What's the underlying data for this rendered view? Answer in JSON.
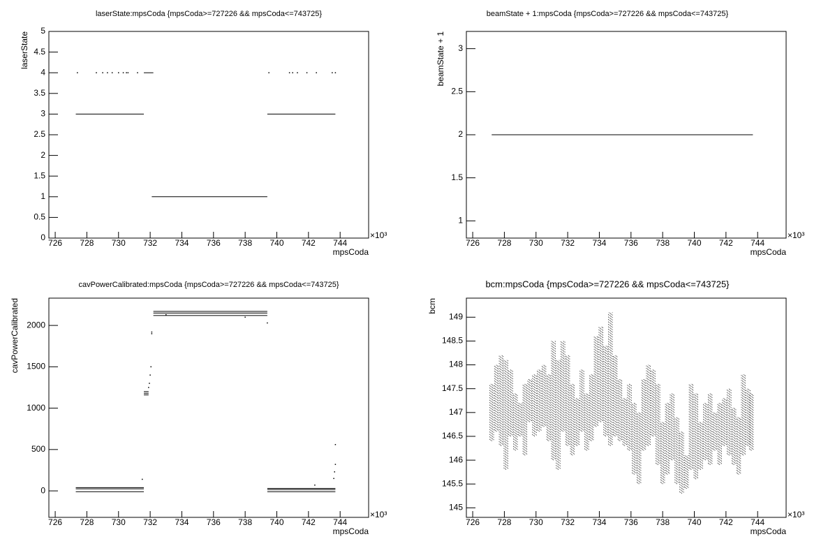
{
  "chart_data": [
    {
      "type": "scatter",
      "title": "laserState:mpsCoda {mpsCoda>=727226 && mpsCoda<=743725}",
      "x_label": "mpsCoda",
      "y_label": "laserState",
      "x_multiplier": "×10³",
      "color": "#000000",
      "xlim": [
        725.6,
        745.8
      ],
      "xticks": [
        726,
        728,
        730,
        732,
        734,
        736,
        738,
        740,
        742,
        744
      ],
      "ylim": [
        0,
        5
      ],
      "yticks": [
        0,
        0.5,
        1,
        1.5,
        2,
        2.5,
        3,
        3.5,
        4,
        4.5,
        5
      ],
      "segments": {
        "y": [
          3,
          1,
          3,
          4
        ],
        "x0": [
          727.3,
          732.1,
          739.4,
          731.6
        ],
        "x1": [
          731.6,
          739.4,
          743.7,
          732.2
        ]
      },
      "points": {
        "x": [
          727.4,
          728.6,
          729.0,
          729.3,
          729.6,
          730.0,
          730.3,
          730.5,
          730.6,
          731.2,
          739.5,
          740.8,
          741.0,
          741.3,
          741.9,
          742.5,
          743.5,
          743.7
        ],
        "y": [
          4,
          4,
          4,
          4,
          4,
          4,
          4,
          4,
          4,
          4,
          4,
          4,
          4,
          4,
          4,
          4,
          4,
          4
        ]
      }
    },
    {
      "type": "scatter",
      "title": "beamState + 1:mpsCoda {mpsCoda>=727226 && mpsCoda<=743725}",
      "x_label": "mpsCoda",
      "y_label": "beamState + 1",
      "x_multiplier": "×10³",
      "color": "#000000",
      "xlim": [
        725.6,
        745.8
      ],
      "xticks": [
        726,
        728,
        730,
        732,
        734,
        736,
        738,
        740,
        742,
        744
      ],
      "ylim": [
        0.8,
        3.2
      ],
      "yticks": [
        1,
        1.5,
        2,
        2.5,
        3
      ],
      "segments": {
        "y": [
          2
        ],
        "x0": [
          727.2
        ],
        "x1": [
          743.7
        ]
      }
    },
    {
      "type": "scatter",
      "title": "cavPowerCalibrated:mpsCoda {mpsCoda>=727226 && mpsCoda<=743725}",
      "x_label": "mpsCoda",
      "y_label": "cavPowerCalibrated",
      "x_multiplier": "×10³",
      "color": "#000000",
      "xlim": [
        725.6,
        745.8
      ],
      "xticks": [
        726,
        728,
        730,
        732,
        734,
        736,
        738,
        740,
        742,
        744
      ],
      "ylim": [
        -320,
        2330
      ],
      "yticks": [
        0,
        500,
        1000,
        1500,
        2000
      ],
      "segments": {
        "y": [
          40,
          25,
          -10,
          1200,
          1180,
          1160,
          2170,
          2150,
          2120,
          30,
          15,
          -10
        ],
        "x0": [
          727.3,
          727.3,
          727.3,
          731.6,
          731.6,
          731.6,
          732.2,
          732.2,
          732.2,
          739.4,
          739.4,
          739.4
        ],
        "x1": [
          731.6,
          731.6,
          731.6,
          731.9,
          731.9,
          731.9,
          739.4,
          739.4,
          739.4,
          743.7,
          743.7,
          743.7
        ]
      },
      "points": {
        "x": [
          731.5,
          731.9,
          731.95,
          732.0,
          732.05,
          732.1,
          732.1,
          733.0,
          738.0,
          739.4,
          742.4,
          743.6,
          743.65,
          743.7,
          743.7
        ],
        "y": [
          140,
          1250,
          1300,
          1400,
          1500,
          1900,
          1920,
          2130,
          2100,
          2030,
          70,
          150,
          230,
          320,
          560
        ]
      }
    },
    {
      "type": "scatter",
      "title": "bcm:mpsCoda {mpsCoda>=727226 && mpsCoda<=743725}",
      "x_label": "mpsCoda",
      "y_label": "bcm",
      "x_multiplier": "×10³",
      "color": "#000000",
      "xlim": [
        725.6,
        745.8
      ],
      "xticks": [
        726,
        728,
        730,
        732,
        734,
        736,
        738,
        740,
        742,
        744
      ],
      "ylim": [
        144.8,
        149.4
      ],
      "yticks": [
        145,
        145.5,
        146,
        146.5,
        147,
        147.5,
        148,
        148.5,
        149
      ],
      "ranges": {
        "x": [
          727.2,
          727.5,
          727.8,
          728.1,
          728.4,
          728.7,
          729.0,
          729.3,
          729.6,
          729.9,
          730.2,
          730.5,
          730.8,
          731.1,
          731.4,
          731.7,
          732.0,
          732.3,
          732.6,
          732.9,
          733.2,
          733.5,
          733.8,
          734.1,
          734.4,
          734.7,
          735.0,
          735.3,
          735.6,
          735.9,
          736.2,
          736.5,
          736.8,
          737.1,
          737.4,
          737.7,
          738.0,
          738.3,
          738.6,
          738.9,
          739.2,
          739.5,
          739.8,
          740.1,
          740.4,
          740.7,
          741.0,
          741.3,
          741.6,
          741.9,
          742.2,
          742.5,
          742.8,
          743.1,
          743.4,
          743.6
        ],
        "low": [
          146.4,
          146.6,
          146.3,
          145.8,
          146.5,
          146.2,
          146.5,
          146.1,
          146.8,
          146.5,
          146.6,
          146.7,
          146.4,
          146.0,
          145.8,
          146.6,
          146.3,
          146.1,
          146.3,
          146.6,
          146.2,
          146.4,
          146.7,
          146.8,
          146.5,
          146.3,
          146.5,
          146.4,
          146.3,
          146.2,
          145.7,
          145.5,
          146.2,
          146.3,
          146.5,
          145.9,
          145.5,
          145.7,
          146.0,
          145.5,
          145.3,
          145.4,
          145.8,
          145.6,
          145.8,
          146.0,
          145.9,
          146.2,
          145.9,
          146.3,
          146.1,
          145.9,
          145.7,
          146.1,
          146.3,
          146.2
        ],
        "high": [
          147.6,
          148.0,
          148.2,
          148.1,
          147.9,
          147.4,
          147.2,
          147.6,
          147.7,
          147.8,
          147.9,
          148.0,
          147.8,
          148.5,
          148.1,
          148.5,
          148.2,
          147.6,
          147.3,
          147.9,
          147.4,
          147.8,
          148.6,
          148.8,
          148.4,
          149.1,
          148.2,
          147.7,
          147.3,
          147.6,
          147.2,
          147.0,
          147.7,
          148.0,
          147.9,
          147.6,
          146.8,
          147.2,
          147.4,
          146.9,
          146.6,
          146.1,
          147.6,
          147.4,
          146.8,
          147.2,
          147.4,
          147.0,
          147.2,
          147.3,
          147.5,
          147.1,
          146.9,
          147.8,
          147.5,
          147.4
        ]
      }
    }
  ]
}
